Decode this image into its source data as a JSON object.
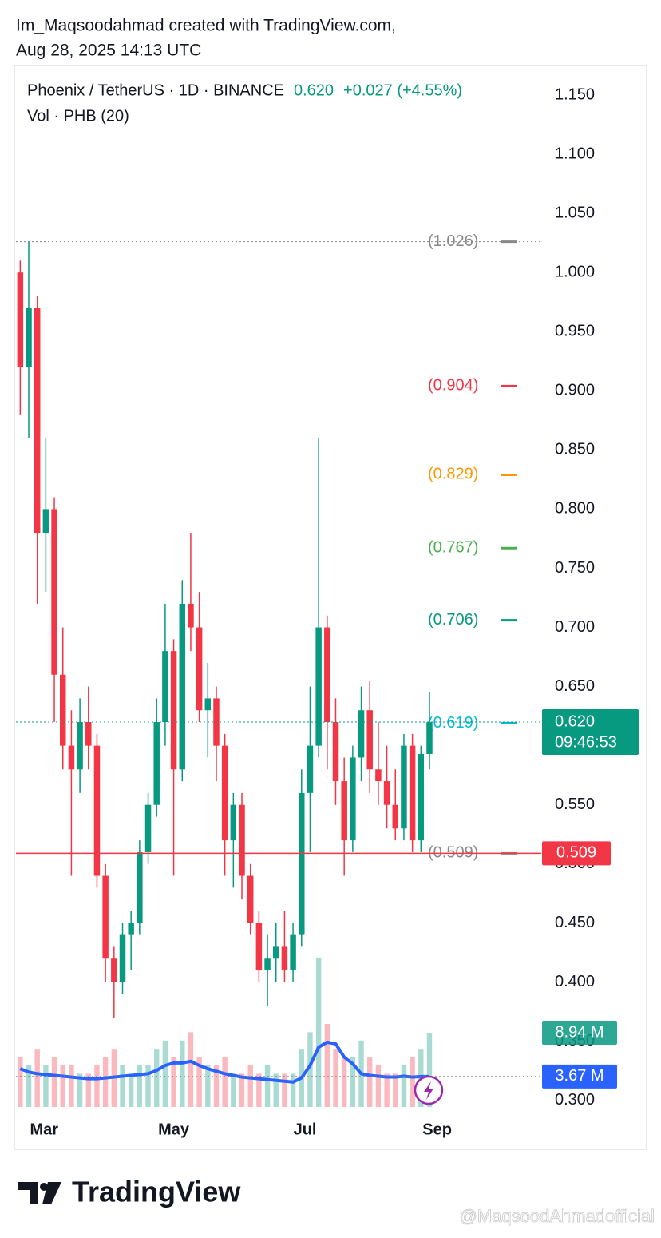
{
  "header": {
    "line1": "Im_Maqsoodahmad created with TradingView.com,",
    "line2": "Aug 28, 2025 14:13 UTC"
  },
  "chart_data": {
    "type": "candlestick",
    "title": "Phoenix / TetherUS · 1D · BINANCE",
    "change": "+0.027 (+4.55%)",
    "volume_title": "Vol · PHB (20)",
    "up_color": "#089981",
    "down_color": "#f23645",
    "open": [
      1.0,
      0.92,
      0.97,
      0.78,
      0.8,
      0.66,
      0.6,
      0.58,
      0.62,
      0.6,
      0.49,
      0.42,
      0.4,
      0.44,
      0.45,
      0.51,
      0.55,
      0.62,
      0.68,
      0.58,
      0.72,
      0.7,
      0.63,
      0.64,
      0.6,
      0.52,
      0.55,
      0.49,
      0.45,
      0.41,
      0.42,
      0.43,
      0.41,
      0.44,
      0.56,
      0.6,
      0.7,
      0.62,
      0.57,
      0.52,
      0.59,
      0.63,
      0.58,
      0.57,
      0.55,
      0.53,
      0.6,
      0.52,
      0.593
    ],
    "high": [
      1.01,
      1.026,
      0.98,
      0.86,
      0.81,
      0.7,
      0.63,
      0.64,
      0.65,
      0.61,
      0.5,
      0.43,
      0.45,
      0.46,
      0.52,
      0.56,
      0.64,
      0.72,
      0.69,
      0.74,
      0.78,
      0.73,
      0.67,
      0.65,
      0.61,
      0.56,
      0.56,
      0.5,
      0.46,
      0.44,
      0.45,
      0.46,
      0.45,
      0.58,
      0.65,
      0.86,
      0.71,
      0.64,
      0.59,
      0.6,
      0.65,
      0.655,
      0.62,
      0.6,
      0.58,
      0.61,
      0.61,
      0.6,
      0.645
    ],
    "low": [
      0.88,
      0.86,
      0.72,
      0.73,
      0.62,
      0.58,
      0.49,
      0.56,
      0.58,
      0.48,
      0.4,
      0.37,
      0.39,
      0.41,
      0.44,
      0.5,
      0.54,
      0.6,
      0.49,
      0.57,
      0.68,
      0.62,
      0.59,
      0.57,
      0.49,
      0.48,
      0.47,
      0.44,
      0.4,
      0.38,
      0.4,
      0.4,
      0.4,
      0.43,
      0.51,
      0.59,
      0.58,
      0.55,
      0.49,
      0.51,
      0.57,
      0.56,
      0.55,
      0.53,
      0.52,
      0.52,
      0.51,
      0.51,
      0.58
    ],
    "close": [
      0.92,
      0.97,
      0.78,
      0.8,
      0.66,
      0.6,
      0.58,
      0.62,
      0.6,
      0.49,
      0.42,
      0.4,
      0.44,
      0.45,
      0.51,
      0.55,
      0.62,
      0.68,
      0.58,
      0.72,
      0.7,
      0.63,
      0.64,
      0.6,
      0.52,
      0.55,
      0.49,
      0.45,
      0.41,
      0.42,
      0.43,
      0.41,
      0.44,
      0.56,
      0.6,
      0.7,
      0.62,
      0.57,
      0.52,
      0.59,
      0.63,
      0.58,
      0.57,
      0.55,
      0.53,
      0.6,
      0.52,
      0.593,
      0.62
    ],
    "volume": [
      6,
      5,
      7,
      5,
      6,
      5,
      5,
      4,
      4,
      5,
      6,
      7,
      5,
      4,
      5,
      5,
      7,
      8,
      6,
      8,
      9,
      6,
      5,
      5,
      6,
      4,
      4,
      5,
      4,
      5,
      4,
      4,
      4,
      7,
      9,
      18,
      10,
      7,
      6,
      6,
      8,
      6,
      5,
      4,
      4,
      5,
      6,
      7,
      8.94
    ],
    "volume_label": "8.94 M",
    "volume_ma": {
      "color": "#2962ff",
      "values": [
        4.6,
        4.2,
        4.0,
        3.9,
        3.8,
        3.7,
        3.6,
        3.5,
        3.4,
        3.4,
        3.5,
        3.6,
        3.7,
        3.8,
        3.9,
        4.0,
        4.4,
        5.0,
        5.3,
        5.3,
        5.5,
        5.0,
        4.6,
        4.3,
        4.0,
        3.8,
        3.6,
        3.5,
        3.4,
        3.3,
        3.2,
        3.1,
        3.0,
        3.5,
        5.0,
        7.2,
        7.8,
        7.6,
        6.0,
        5.2,
        4.0,
        3.8,
        3.7,
        3.6,
        3.6,
        3.7,
        3.6,
        3.67,
        3.67
      ],
      "label": "3.67 M"
    },
    "xticks": [
      {
        "value": 2.8,
        "label": "Mar"
      },
      {
        "value": 18,
        "label": "May"
      },
      {
        "value": 33.4,
        "label": "Jul"
      },
      {
        "value": 48.9,
        "label": "Sep"
      }
    ],
    "ylim": [
      0.2885,
      1.175
    ],
    "yticks": [
      {
        "value": 1.15,
        "label": "1.150"
      },
      {
        "value": 1.1,
        "label": "1.100"
      },
      {
        "value": 1.05,
        "label": "1.050"
      },
      {
        "value": 1.0,
        "label": "1.000"
      },
      {
        "value": 0.95,
        "label": "0.950"
      },
      {
        "value": 0.9,
        "label": "0.900"
      },
      {
        "value": 0.85,
        "label": "0.850"
      },
      {
        "value": 0.8,
        "label": "0.800"
      },
      {
        "value": 0.75,
        "label": "0.750"
      },
      {
        "value": 0.7,
        "label": "0.700"
      },
      {
        "value": 0.65,
        "label": "0.650"
      },
      {
        "value": 0.6,
        "label": "0.600"
      },
      {
        "value": 0.55,
        "label": "0.550"
      },
      {
        "value": 0.5,
        "label": "0.500"
      },
      {
        "value": 0.45,
        "label": "0.450"
      },
      {
        "value": 0.4,
        "label": "0.400"
      },
      {
        "value": 0.35,
        "label": "0.350"
      },
      {
        "value": 0.3,
        "label": "0.300"
      }
    ],
    "levels": [
      {
        "value": 1.026,
        "label": "(1.026)",
        "color": "#888888"
      },
      {
        "value": 0.904,
        "label": "(0.904)",
        "color": "#f23645"
      },
      {
        "value": 0.829,
        "label": "(0.829)",
        "color": "#ff9800"
      },
      {
        "value": 0.767,
        "label": "(0.767)",
        "color": "#4caf50"
      },
      {
        "value": 0.706,
        "label": "(0.706)",
        "color": "#089981"
      },
      {
        "value": 0.619,
        "label": "(0.619)",
        "color": "#00bcd4"
      },
      {
        "value": 0.509,
        "label": "(0.509)",
        "color": "#888888"
      }
    ],
    "price_tag": {
      "value": 0.62,
      "label": "0.620",
      "time": "09:46:53",
      "color": "#089981"
    },
    "alert_line": {
      "value": 0.509,
      "label": "0.509",
      "color": "#f23645"
    }
  },
  "footer": {
    "logo": "TradingView",
    "watermark": "@MaqsoodAhmadofficial"
  }
}
